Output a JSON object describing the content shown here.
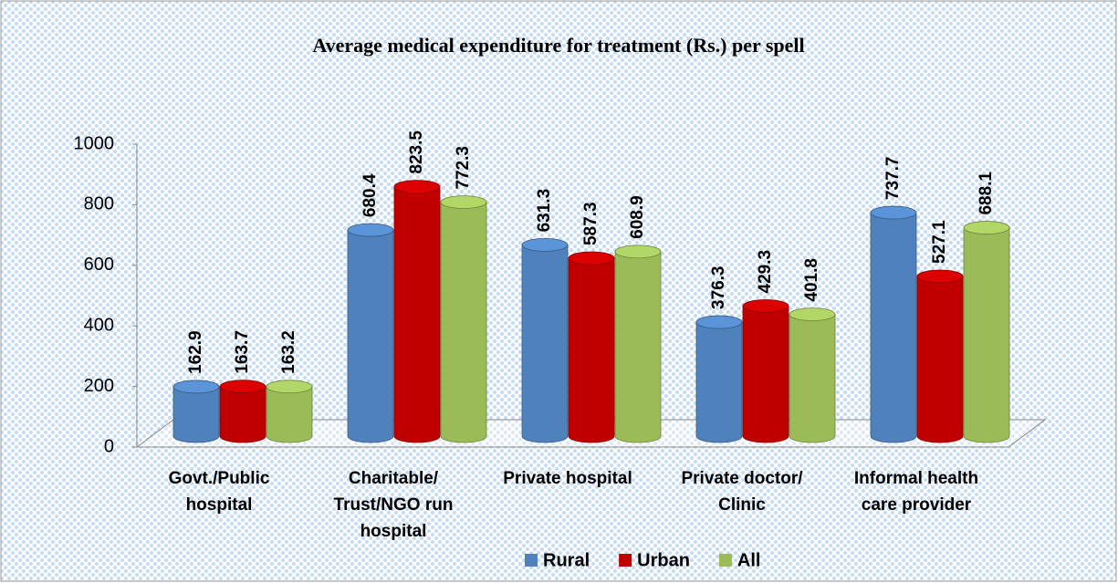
{
  "chart_data": {
    "type": "bar",
    "title": "Average medical expenditure for treatment (Rs.) per spell",
    "categories": [
      "Govt./Public hospital",
      "Charitable/ Trust/NGO run hospital",
      "Private hospital",
      "Private doctor/ Clinic",
      "Informal health care provider"
    ],
    "series": [
      {
        "name": "Rural",
        "color": "#4f81bd",
        "values": [
          162.9,
          680.4,
          631.3,
          376.3,
          737.7
        ]
      },
      {
        "name": "Urban",
        "color": "#c00000",
        "values": [
          163.7,
          823.5,
          587.3,
          429.3,
          527.1
        ]
      },
      {
        "name": "All",
        "color": "#9bbb59",
        "values": [
          163.2,
          772.3,
          608.9,
          401.8,
          688.1
        ]
      }
    ],
    "ylim": [
      0,
      1000
    ],
    "yticks": [
      0,
      200,
      400,
      600,
      800,
      1000
    ],
    "grid": false,
    "legend": "bottom"
  }
}
